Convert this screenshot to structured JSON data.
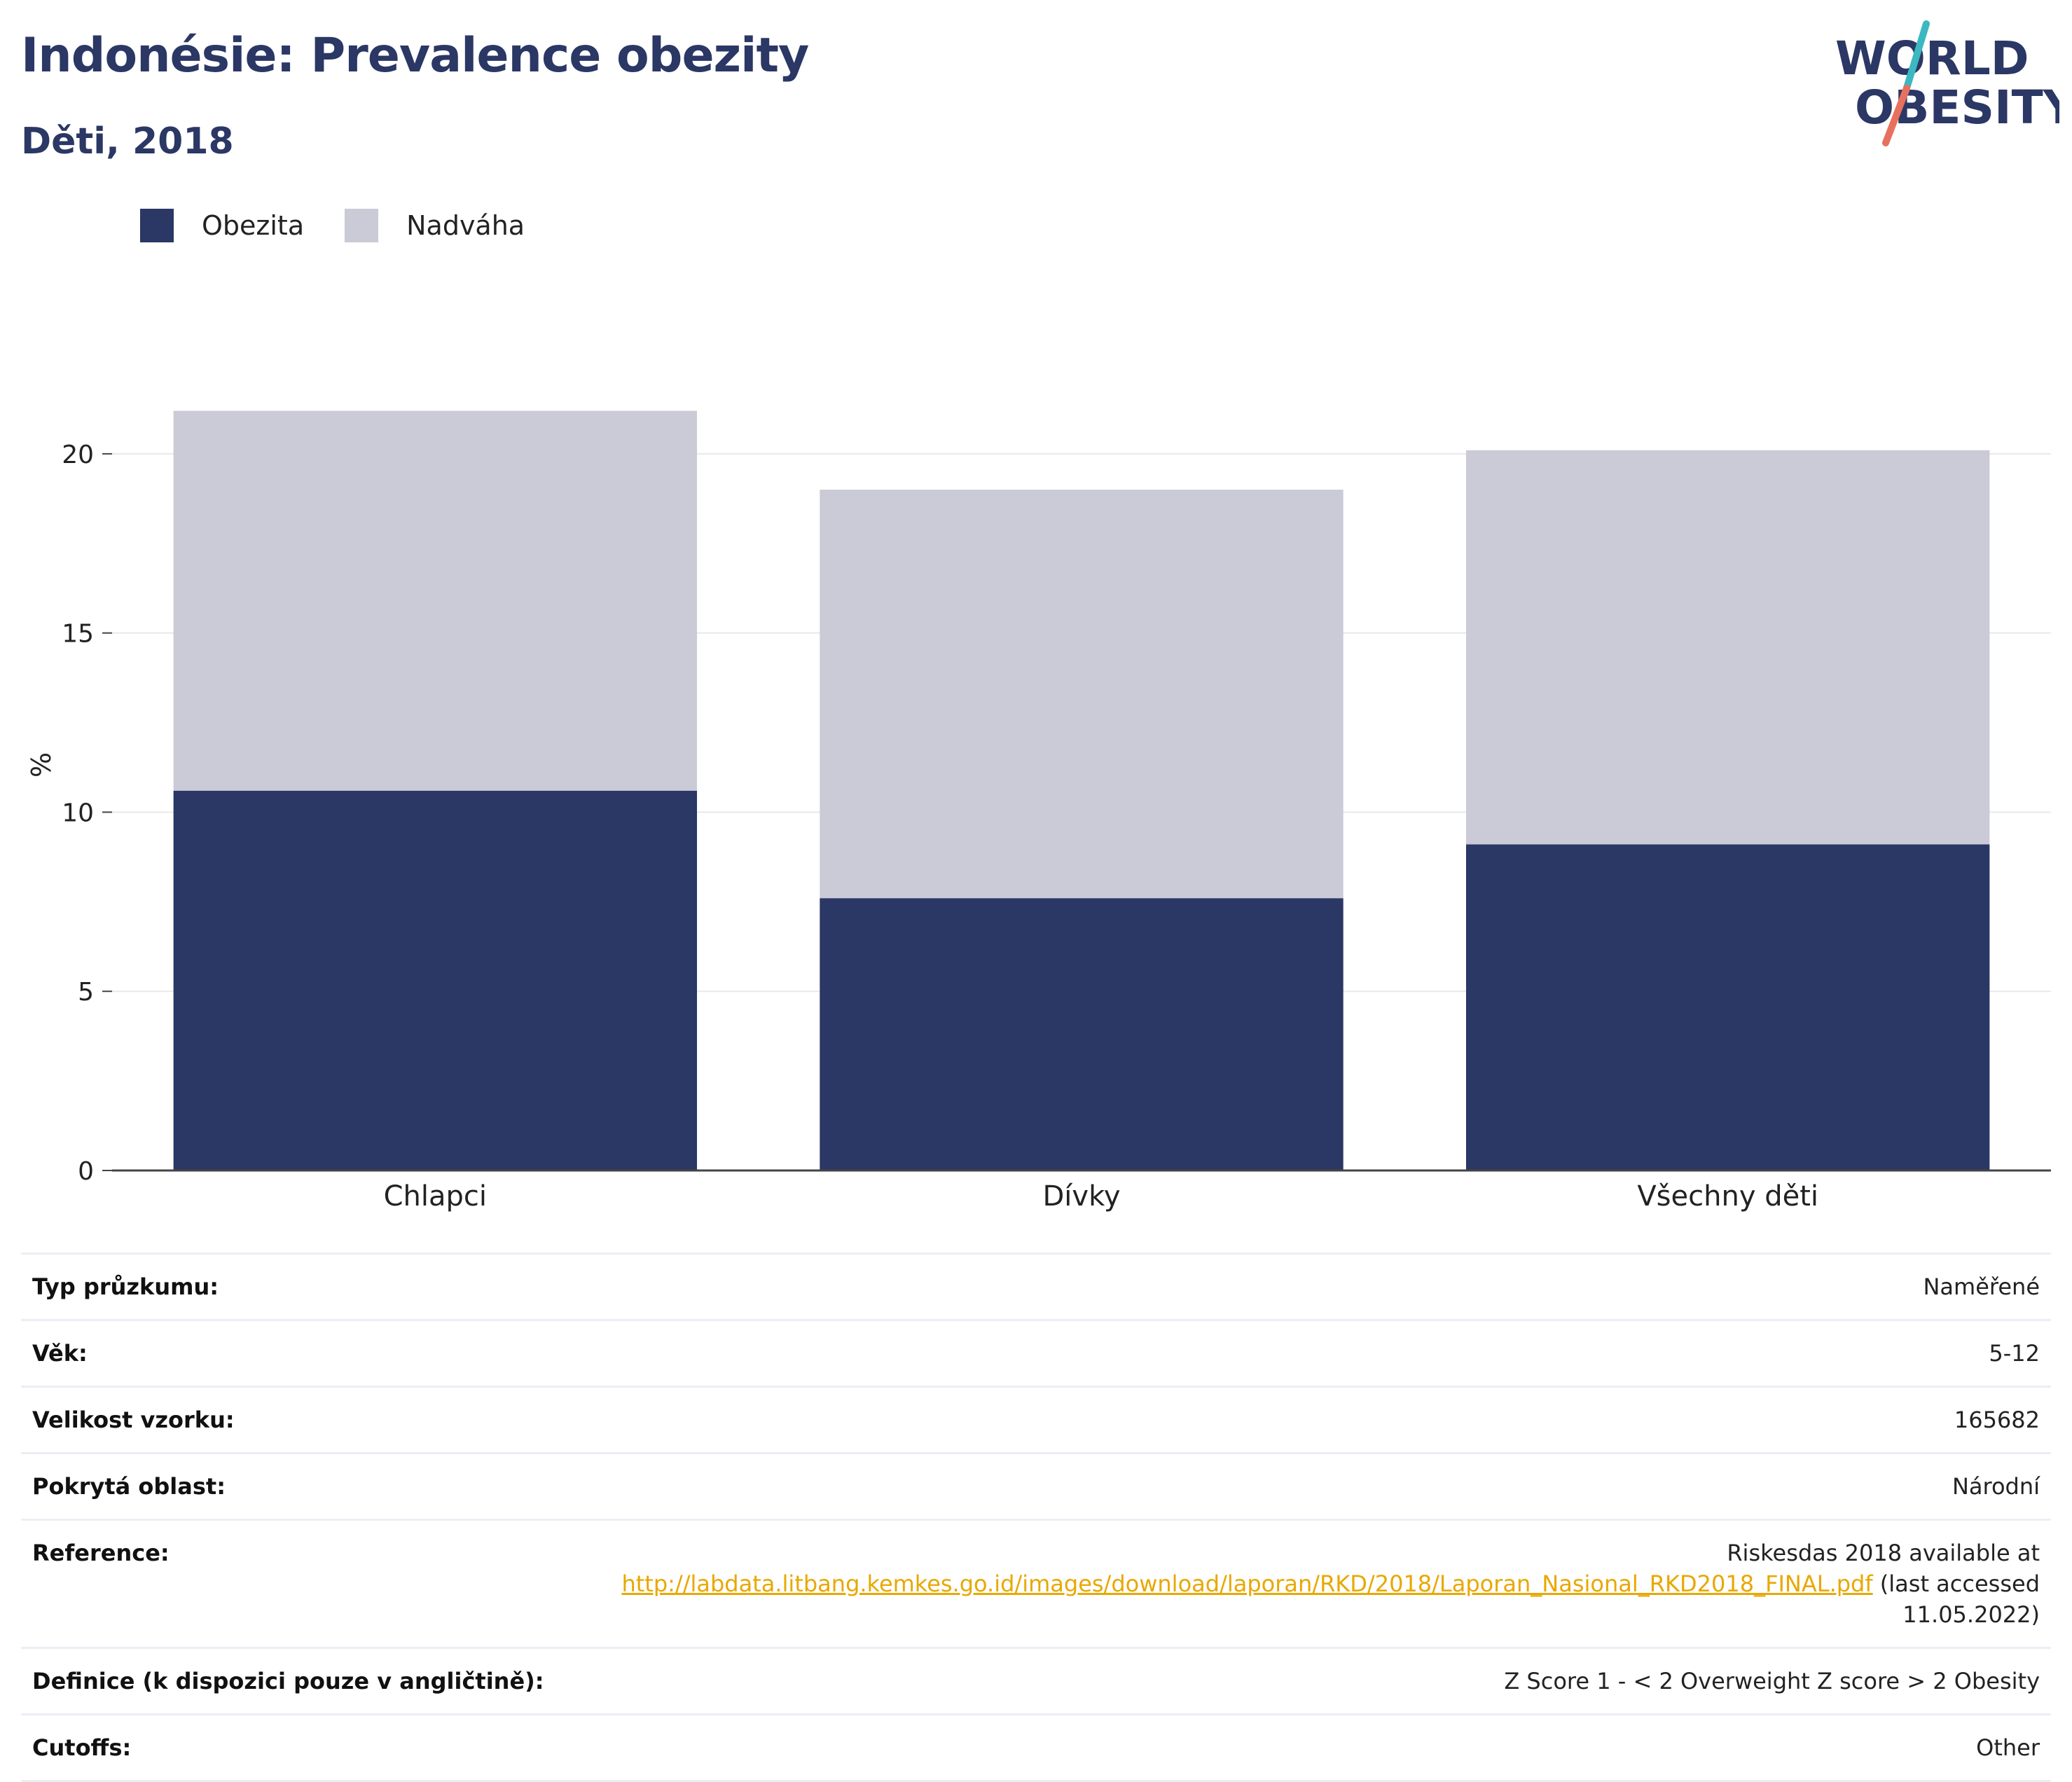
{
  "header": {
    "title": "Indonésie: Prevalence obezity",
    "subtitle": "Děti, 2018"
  },
  "logo": {
    "line1": "WORLD",
    "line2": "OBESITY",
    "colors": {
      "text": "#2b3764",
      "slash_top": "#3bb8c0",
      "slash_bottom": "#e8705e"
    }
  },
  "legend": [
    {
      "label": "Obezita",
      "color": "#2b3764"
    },
    {
      "label": "Nadváha",
      "color": "#cacbd6"
    }
  ],
  "chart_data": {
    "type": "bar",
    "stacked": true,
    "categories": [
      "Chlapci",
      "Dívky",
      "Všechny děti"
    ],
    "series": [
      {
        "name": "Obezita",
        "color": "#2b3764",
        "values": [
          10.6,
          7.6,
          9.1
        ]
      },
      {
        "name": "Nadváha",
        "color": "#cacbd6",
        "values": [
          10.6,
          11.4,
          11.0
        ]
      }
    ],
    "ylabel": "%",
    "xlabel": "",
    "ylim": [
      0,
      22.5
    ],
    "yticks": [
      0,
      5,
      10,
      15,
      20
    ],
    "grid": true,
    "legend_position": "top-left"
  },
  "info": [
    {
      "key": "Typ průzkumu:",
      "value": "Naměřené"
    },
    {
      "key": "Věk:",
      "value": "5-12"
    },
    {
      "key": "Velikost vzorku:",
      "value": "165682"
    },
    {
      "key": "Pokrytá oblast:",
      "value": "Národní"
    },
    {
      "key": "Reference:",
      "value_prefix": "Riskesdas 2018 available at",
      "link": "http://labdata.litbang.kemkes.go.id/images/download/laporan/RKD/2018/Laporan_Nasional_RKD2018_FINAL.pdf",
      "value_suffix": "(last accessed 11.05.2022)"
    },
    {
      "key": "Definice (k dispozici pouze v angličtině):",
      "value": "Z Score 1 - < 2 Overweight Z score > 2 Obesity"
    },
    {
      "key": "Cutoffs:",
      "value": "Other"
    }
  ]
}
